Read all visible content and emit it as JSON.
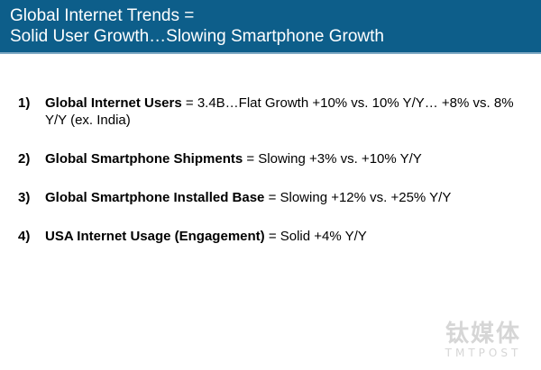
{
  "header": {
    "title_line1": "Global Internet Trends =",
    "title_line2": "Solid User Growth…Slowing Smartphone Growth",
    "background_color": "#0d5e8a"
  },
  "points": [
    {
      "number": "1)",
      "lead": "Global Internet Users",
      "text": " = 3.4B…Flat Growth +10% vs. 10% Y/Y… +8% vs. 8% Y/Y (ex. India)"
    },
    {
      "number": "2)",
      "lead": "Global Smartphone Shipments",
      "text": " = Slowing +3% vs. +10% Y/Y"
    },
    {
      "number": "3)",
      "lead": "Global Smartphone Installed Base",
      "text": " = Slowing +12% vs. +25% Y/Y"
    },
    {
      "number": "4)",
      "lead": "USA Internet Usage (Engagement)",
      "text": " = Solid +4% Y/Y"
    }
  ],
  "watermark": {
    "chinese": "钛媒体",
    "english": "TMTPOST"
  }
}
